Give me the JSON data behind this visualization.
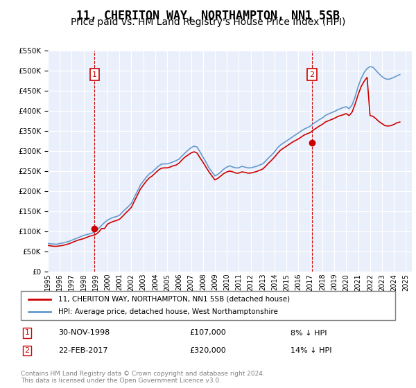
{
  "title": "11, CHERITON WAY, NORTHAMPTON, NN1 5SB",
  "subtitle": "Price paid vs. HM Land Registry's House Price Index (HPI)",
  "title_fontsize": 12,
  "subtitle_fontsize": 10,
  "ylim": [
    0,
    550000
  ],
  "yticks": [
    0,
    50000,
    100000,
    150000,
    200000,
    250000,
    300000,
    350000,
    400000,
    450000,
    500000,
    550000
  ],
  "ytick_labels": [
    "£0",
    "£50K",
    "£100K",
    "£150K",
    "£200K",
    "£250K",
    "£300K",
    "£350K",
    "£400K",
    "£450K",
    "£500K",
    "£550K"
  ],
  "xlim_start": 1995.0,
  "xlim_end": 2025.5,
  "background_color": "#eaf0fb",
  "plot_bg_color": "#eaf0fb",
  "grid_color": "#ffffff",
  "hpi_color": "#6699cc",
  "price_color": "#cc0000",
  "marker1_x": 1998.92,
  "marker2_x": 2017.13,
  "marker1_y": 107000,
  "marker2_y": 320000,
  "transaction1_date": "30-NOV-1998",
  "transaction1_price": "£107,000",
  "transaction1_note": "8% ↓ HPI",
  "transaction2_date": "22-FEB-2017",
  "transaction2_price": "£320,000",
  "transaction2_note": "14% ↓ HPI",
  "legend_line1": "11, CHERITON WAY, NORTHAMPTON, NN1 5SB (detached house)",
  "legend_line2": "HPI: Average price, detached house, West Northamptonshire",
  "footer": "Contains HM Land Registry data © Crown copyright and database right 2024.\nThis data is licensed under the Open Government Licence v3.0.",
  "hpi_data_x": [
    1995.0,
    1995.25,
    1995.5,
    1995.75,
    1996.0,
    1996.25,
    1996.5,
    1996.75,
    1997.0,
    1997.25,
    1997.5,
    1997.75,
    1998.0,
    1998.25,
    1998.5,
    1998.75,
    1999.0,
    1999.25,
    1999.5,
    1999.75,
    2000.0,
    2000.25,
    2000.5,
    2000.75,
    2001.0,
    2001.25,
    2001.5,
    2001.75,
    2002.0,
    2002.25,
    2002.5,
    2002.75,
    2003.0,
    2003.25,
    2003.5,
    2003.75,
    2004.0,
    2004.25,
    2004.5,
    2004.75,
    2005.0,
    2005.25,
    2005.5,
    2005.75,
    2006.0,
    2006.25,
    2006.5,
    2006.75,
    2007.0,
    2007.25,
    2007.5,
    2007.75,
    2008.0,
    2008.25,
    2008.5,
    2008.75,
    2009.0,
    2009.25,
    2009.5,
    2009.75,
    2010.0,
    2010.25,
    2010.5,
    2010.75,
    2011.0,
    2011.25,
    2011.5,
    2011.75,
    2012.0,
    2012.25,
    2012.5,
    2012.75,
    2013.0,
    2013.25,
    2013.5,
    2013.75,
    2014.0,
    2014.25,
    2014.5,
    2014.75,
    2015.0,
    2015.25,
    2015.5,
    2015.75,
    2016.0,
    2016.25,
    2016.5,
    2016.75,
    2017.0,
    2017.25,
    2017.5,
    2017.75,
    2018.0,
    2018.25,
    2018.5,
    2018.75,
    2019.0,
    2019.25,
    2019.5,
    2019.75,
    2020.0,
    2020.25,
    2020.5,
    2020.75,
    2021.0,
    2021.25,
    2021.5,
    2021.75,
    2022.0,
    2022.25,
    2022.5,
    2022.75,
    2023.0,
    2023.25,
    2023.5,
    2023.75,
    2024.0,
    2024.25,
    2024.5
  ],
  "hpi_data_y": [
    70000,
    69000,
    68500,
    68000,
    70000,
    71000,
    73000,
    75000,
    78000,
    81000,
    84000,
    87000,
    90000,
    92000,
    94000,
    96000,
    100000,
    107000,
    115000,
    122000,
    128000,
    132000,
    135000,
    137000,
    140000,
    148000,
    155000,
    162000,
    170000,
    185000,
    200000,
    215000,
    225000,
    235000,
    243000,
    248000,
    255000,
    262000,
    267000,
    268000,
    268000,
    270000,
    273000,
    276000,
    280000,
    288000,
    295000,
    302000,
    308000,
    312000,
    310000,
    298000,
    285000,
    272000,
    258000,
    248000,
    238000,
    242000,
    248000,
    255000,
    260000,
    263000,
    260000,
    258000,
    258000,
    262000,
    260000,
    258000,
    258000,
    260000,
    262000,
    265000,
    268000,
    275000,
    283000,
    290000,
    298000,
    308000,
    315000,
    320000,
    325000,
    330000,
    335000,
    340000,
    345000,
    350000,
    355000,
    358000,
    362000,
    368000,
    373000,
    378000,
    382000,
    388000,
    392000,
    395000,
    398000,
    402000,
    405000,
    408000,
    410000,
    405000,
    415000,
    435000,
    460000,
    480000,
    495000,
    505000,
    510000,
    508000,
    500000,
    492000,
    485000,
    480000,
    478000,
    480000,
    483000,
    487000,
    490000
  ],
  "price_data_x": [
    1995.0,
    1995.25,
    1995.5,
    1995.75,
    1996.0,
    1996.25,
    1996.5,
    1996.75,
    1997.0,
    1997.25,
    1997.5,
    1997.75,
    1998.0,
    1998.25,
    1998.5,
    1998.75,
    1999.0,
    1999.25,
    1999.5,
    1999.75,
    2000.0,
    2000.25,
    2000.5,
    2000.75,
    2001.0,
    2001.25,
    2001.5,
    2001.75,
    2002.0,
    2002.25,
    2002.5,
    2002.75,
    2003.0,
    2003.25,
    2003.5,
    2003.75,
    2004.0,
    2004.25,
    2004.5,
    2004.75,
    2005.0,
    2005.25,
    2005.5,
    2005.75,
    2006.0,
    2006.25,
    2006.5,
    2006.75,
    2007.0,
    2007.25,
    2007.5,
    2007.75,
    2008.0,
    2008.25,
    2008.5,
    2008.75,
    2009.0,
    2009.25,
    2009.5,
    2009.75,
    2010.0,
    2010.25,
    2010.5,
    2010.75,
    2011.0,
    2011.25,
    2011.5,
    2011.75,
    2012.0,
    2012.25,
    2012.5,
    2012.75,
    2013.0,
    2013.25,
    2013.5,
    2013.75,
    2014.0,
    2014.25,
    2014.5,
    2014.75,
    2015.0,
    2015.25,
    2015.5,
    2015.75,
    2016.0,
    2016.25,
    2016.5,
    2016.75,
    2017.0,
    2017.25,
    2017.5,
    2017.75,
    2018.0,
    2018.25,
    2018.5,
    2018.75,
    2019.0,
    2019.25,
    2019.5,
    2019.75,
    2020.0,
    2020.25,
    2020.5,
    2020.75,
    2021.0,
    2021.25,
    2021.5,
    2021.75,
    2022.0,
    2022.25,
    2022.5,
    2022.75,
    2023.0,
    2023.25,
    2023.5,
    2023.75,
    2024.0,
    2024.25,
    2024.5
  ],
  "price_data_y": [
    65000,
    64000,
    63000,
    63000,
    64000,
    65000,
    67000,
    69000,
    72000,
    75000,
    78000,
    80000,
    82000,
    85000,
    88000,
    90000,
    92000,
    98000,
    107000,
    107000,
    118000,
    122000,
    125000,
    127000,
    130000,
    137000,
    145000,
    152000,
    160000,
    175000,
    190000,
    205000,
    215000,
    225000,
    233000,
    238000,
    245000,
    252000,
    257000,
    258000,
    258000,
    260000,
    263000,
    265000,
    270000,
    278000,
    285000,
    290000,
    295000,
    298000,
    295000,
    283000,
    272000,
    260000,
    248000,
    238000,
    228000,
    232000,
    238000,
    244000,
    248000,
    250000,
    248000,
    245000,
    245000,
    248000,
    247000,
    245000,
    245000,
    247000,
    249000,
    252000,
    255000,
    262000,
    270000,
    277000,
    285000,
    294000,
    302000,
    307000,
    312000,
    317000,
    322000,
    326000,
    330000,
    335000,
    340000,
    343000,
    346000,
    352000,
    357000,
    362000,
    366000,
    372000,
    375000,
    378000,
    381000,
    385000,
    388000,
    390000,
    393000,
    388000,
    397000,
    417000,
    440000,
    460000,
    473000,
    483000,
    388000,
    386000,
    380000,
    373000,
    368000,
    363000,
    362000,
    363000,
    366000,
    370000,
    372000
  ]
}
